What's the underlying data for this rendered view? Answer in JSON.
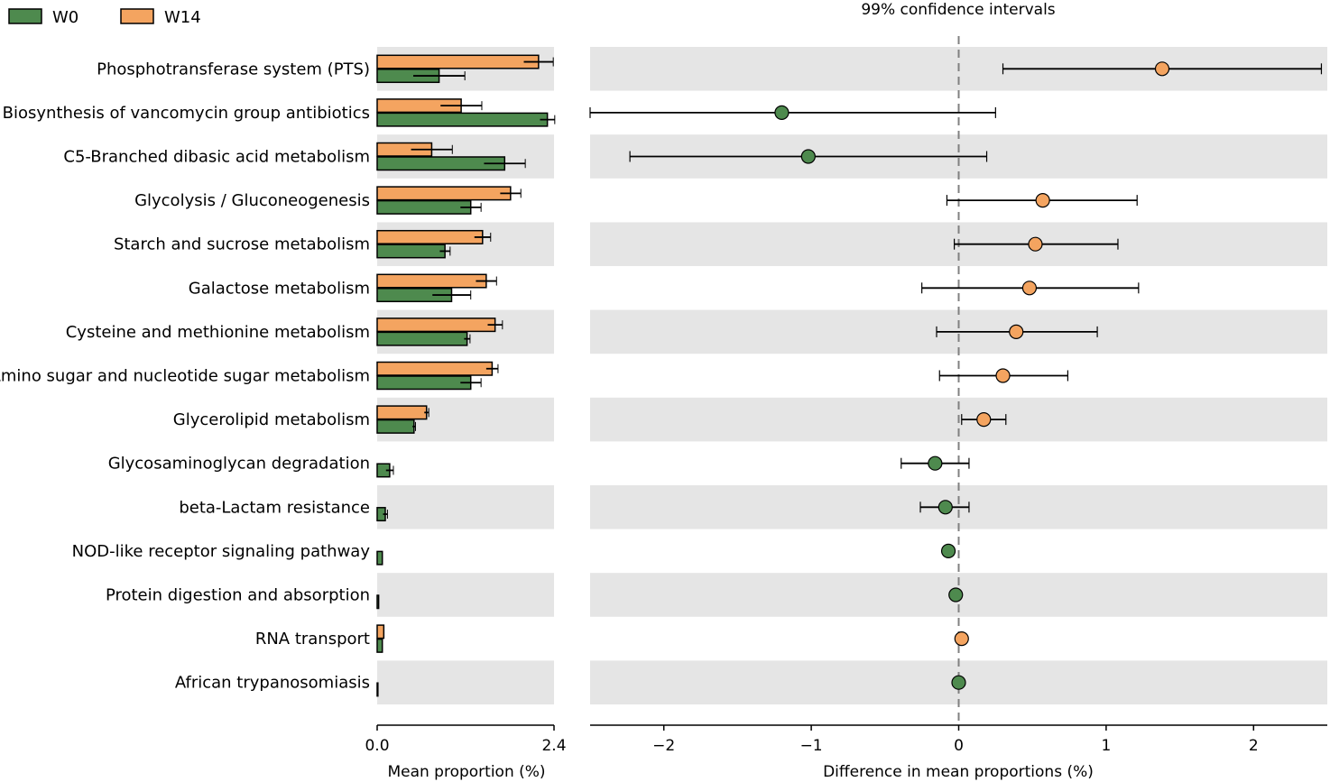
{
  "chart_data": {
    "type": "extended_error_bar",
    "legend": {
      "position": "top-left",
      "entries": [
        {
          "name": "W0",
          "color": "#4e8a4e"
        },
        {
          "name": "W14",
          "color": "#f4a460"
        }
      ]
    },
    "categories": [
      "Phosphotransferase system (PTS)",
      "Biosynthesis of vancomycin group antibiotics",
      "C5-Branched dibasic acid metabolism",
      "Glycolysis / Gluconeogenesis",
      "Starch and sucrose metabolism",
      "Galactose metabolism",
      "Cysteine and methionine metabolism",
      "Amino sugar and nucleotide sugar metabolism",
      "Glycerolipid metabolism",
      "Glycosaminoglycan degradation",
      "beta-Lactam resistance",
      "NOD-like receptor signaling pathway",
      "Protein digestion and absorption",
      "RNA transport",
      "African trypanosomiasis"
    ],
    "bars": {
      "xlabel": "Mean proportion (%)",
      "xlim": [
        0,
        2.4
      ],
      "ticks": [
        {
          "value": 0,
          "label": "0.0"
        },
        {
          "value": 2.4,
          "label": "2.4"
        }
      ],
      "series": [
        {
          "name": "W14",
          "color": "#f4a460",
          "values": [
            2.19,
            1.14,
            0.74,
            1.81,
            1.43,
            1.48,
            1.6,
            1.56,
            0.67,
            0.0,
            0.0,
            0.0,
            0.0,
            0.09,
            0.0
          ],
          "errors": [
            0.2,
            0.28,
            0.28,
            0.14,
            0.11,
            0.14,
            0.1,
            0.08,
            0.03,
            0.0,
            0.0,
            0.0,
            0.0,
            0.0,
            0.0
          ]
        },
        {
          "name": "W0",
          "color": "#4e8a4e",
          "values": [
            0.84,
            2.31,
            1.73,
            1.27,
            0.92,
            1.01,
            1.22,
            1.27,
            0.5,
            0.17,
            0.11,
            0.07,
            0.02,
            0.07,
            0.01
          ],
          "errors": [
            0.35,
            0.1,
            0.28,
            0.14,
            0.07,
            0.26,
            0.04,
            0.14,
            0.02,
            0.05,
            0.03,
            0.0,
            0.0,
            0.0,
            0.0
          ]
        }
      ]
    },
    "ci": {
      "title": "99% confidence intervals",
      "xlabel": "Difference in mean proportions (%)",
      "xlim": [
        -2.5,
        2.5
      ],
      "ticks": [
        {
          "value": -2,
          "label": "−2"
        },
        {
          "value": -1,
          "label": "−1"
        },
        {
          "value": 0,
          "label": "0"
        },
        {
          "value": 1,
          "label": "1"
        },
        {
          "value": 2,
          "label": "2"
        }
      ],
      "points": [
        {
          "diff": 1.38,
          "low": 0.3,
          "high": 2.46,
          "group": "W14"
        },
        {
          "diff": -1.2,
          "low": -2.5,
          "high": 0.25,
          "group": "W0"
        },
        {
          "diff": -1.02,
          "low": -2.23,
          "high": 0.19,
          "group": "W0"
        },
        {
          "diff": 0.57,
          "low": -0.08,
          "high": 1.21,
          "group": "W14"
        },
        {
          "diff": 0.52,
          "low": -0.03,
          "high": 1.08,
          "group": "W14"
        },
        {
          "diff": 0.48,
          "low": -0.25,
          "high": 1.22,
          "group": "W14"
        },
        {
          "diff": 0.39,
          "low": -0.15,
          "high": 0.94,
          "group": "W14"
        },
        {
          "diff": 0.3,
          "low": -0.13,
          "high": 0.74,
          "group": "W14"
        },
        {
          "diff": 0.17,
          "low": 0.02,
          "high": 0.32,
          "group": "W14"
        },
        {
          "diff": -0.16,
          "low": -0.39,
          "high": 0.07,
          "group": "W0"
        },
        {
          "diff": -0.09,
          "low": -0.26,
          "high": 0.07,
          "group": "W0"
        },
        {
          "diff": -0.07,
          "low": -0.1,
          "high": -0.04,
          "group": "W0"
        },
        {
          "diff": -0.02,
          "low": -0.03,
          "high": -0.01,
          "group": "W0"
        },
        {
          "diff": 0.02,
          "low": 0.01,
          "high": 0.03,
          "group": "W14"
        },
        {
          "diff": 0.0,
          "low": -0.01,
          "high": 0.01,
          "group": "W0"
        }
      ]
    }
  }
}
